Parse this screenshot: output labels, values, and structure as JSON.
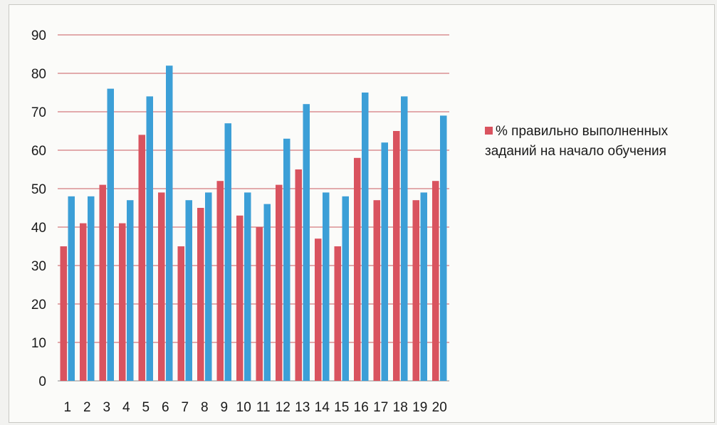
{
  "chart_data": {
    "type": "bar",
    "categories": [
      "1",
      "2",
      "3",
      "4",
      "5",
      "6",
      "7",
      "8",
      "9",
      "10",
      "11",
      "12",
      "13",
      "14",
      "15",
      "16",
      "17",
      "18",
      "19",
      "20"
    ],
    "series": [
      {
        "name": "% правильно выполненных заданий на начало обучения",
        "color": "#d9535f",
        "values": [
          35,
          41,
          51,
          41,
          64,
          49,
          35,
          45,
          52,
          43,
          40,
          51,
          55,
          37,
          35,
          58,
          47,
          65,
          47,
          52
        ]
      },
      {
        "name": "",
        "color": "#3c9fd7",
        "values": [
          48,
          48,
          76,
          47,
          74,
          82,
          47,
          49,
          67,
          49,
          46,
          63,
          72,
          49,
          48,
          75,
          62,
          74,
          49,
          69
        ]
      }
    ],
    "y_ticks": [
      "0",
      "10",
      "20",
      "30",
      "40",
      "50",
      "60",
      "70",
      "80",
      "90"
    ],
    "ylim": [
      0,
      90
    ],
    "grid": true,
    "gridline_color": "#c9585f",
    "legend_position": "right",
    "title": "",
    "xlabel": "",
    "ylabel": ""
  }
}
